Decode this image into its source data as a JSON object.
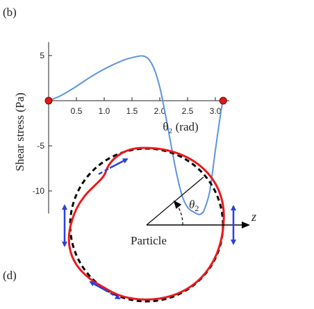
{
  "panel_labels": {
    "top": "(b)",
    "bottom": "(d)"
  },
  "colors": {
    "curve": "#5b93e0",
    "endpoint": "#e01818",
    "axis": "#222222",
    "deformed": "#e81a1a",
    "reference": "#000000",
    "arrow": "#2a3fe0"
  },
  "chart_data": {
    "type": "line",
    "xlabel": "θ₂ (rad)",
    "ylabel": "Shear stress (Pa)",
    "xlim": [
      0,
      3.25
    ],
    "ylim": [
      -12.5,
      6.5
    ],
    "xticks": [
      0.5,
      1.0,
      1.5,
      2.0,
      2.5,
      3.0
    ],
    "xtick_labels": [
      "0.5",
      "1.0",
      "1.5",
      "2.0",
      "2.5",
      "3.0"
    ],
    "yticks": [
      5,
      -5,
      -10
    ],
    "ytick_labels": [
      "5",
      "-5",
      "-10"
    ],
    "grid": false,
    "series": [
      {
        "x": [
          0,
          0.2,
          0.4,
          0.6,
          0.8,
          1.0,
          1.2,
          1.4,
          1.6,
          1.7,
          1.8,
          1.9,
          2.0,
          2.1,
          2.2,
          2.3,
          2.4,
          2.5,
          2.6,
          2.7,
          2.75,
          2.8,
          2.9,
          3.0,
          3.1,
          3.14
        ],
        "y": [
          0,
          0.5,
          1.2,
          2.0,
          2.8,
          3.5,
          4.1,
          4.6,
          4.9,
          4.95,
          4.6,
          3.5,
          1.5,
          -1.5,
          -4.8,
          -8.0,
          -10.5,
          -11.8,
          -12.3,
          -12.6,
          -12.5,
          -12.1,
          -10.0,
          -5.5,
          -1.2,
          0
        ]
      }
    ],
    "endpoints": {
      "x": [
        0,
        3.14
      ],
      "y": [
        0,
        0
      ]
    }
  },
  "diagram": {
    "particle_label": "Particle",
    "z_label": "z",
    "theta_symbol": "θ",
    "theta_subscript": "2"
  }
}
